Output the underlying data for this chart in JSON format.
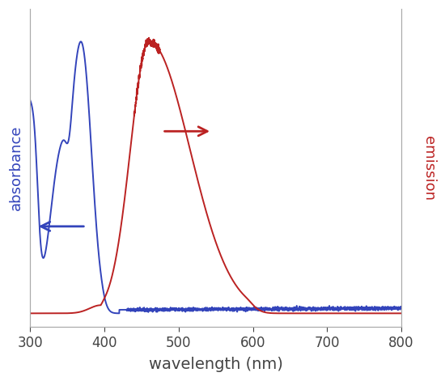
{
  "xlim": [
    300,
    800
  ],
  "xlabel": "wavelength (nm)",
  "ylabel_left": "absorbance",
  "ylabel_right": "emission",
  "absorbance_color": "#3344bb",
  "emission_color": "#bb2222",
  "background_color": "#ffffff",
  "xlabel_fontsize": 14,
  "ylabel_fontsize": 13,
  "tick_fontsize": 12,
  "figsize": [
    5.5,
    4.71
  ],
  "dpi": 100
}
